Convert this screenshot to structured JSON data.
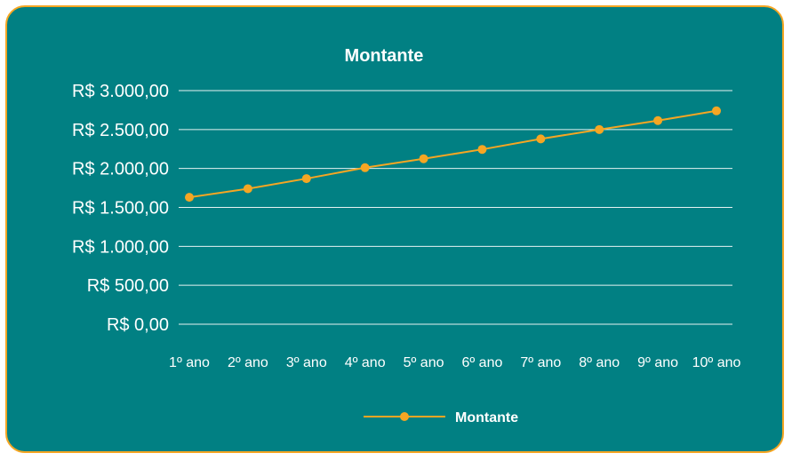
{
  "chart_data": {
    "type": "line",
    "title": "Montante",
    "categories": [
      "1º ano",
      "2º ano",
      "3º ano",
      "4º ano",
      "5º ano",
      "6º ano",
      "7º ano",
      "8º ano",
      "9º ano",
      "10º ano"
    ],
    "series": [
      {
        "name": "Montante",
        "values": [
          1630,
          1740,
          1870,
          2010,
          2125,
          2245,
          2380,
          2500,
          2615,
          2740
        ]
      }
    ],
    "yticks": [
      "R$ 0,00",
      "R$ 500,00",
      "R$ 1.000,00",
      "R$ 1.500,00",
      "R$ 2.000,00",
      "R$ 2.500,00",
      "R$ 3.000,00"
    ],
    "ylim": [
      0,
      3000
    ],
    "grid": true,
    "legend_position": "bottom",
    "colors": {
      "background": "#018083",
      "border": "#f5a623",
      "line": "#f5a623",
      "marker": "#f5a623",
      "grid": "#e6f2f2",
      "text": "#ffffff"
    }
  }
}
